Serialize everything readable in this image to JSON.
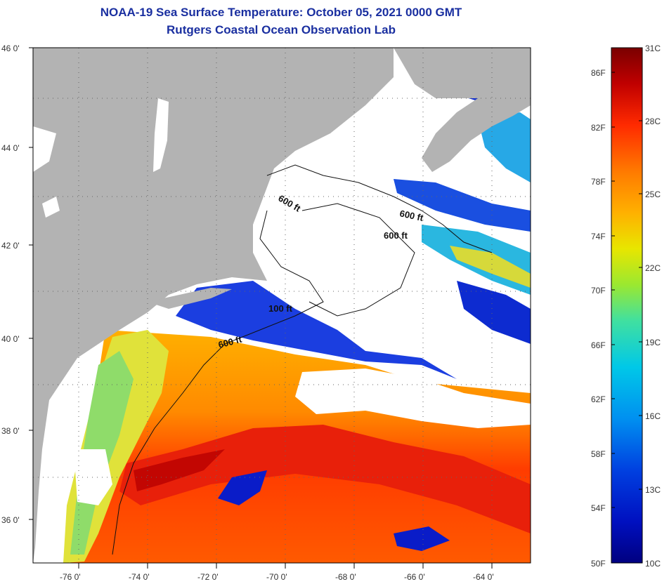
{
  "title": {
    "line1": "NOAA-19 Sea Surface Temperature:  October 05, 2021 0000 GMT",
    "line2": "Rutgers Coastal Ocean Observation Lab"
  },
  "map": {
    "lat_labels": [
      "46 0'",
      "44 0'",
      "42 0'",
      "40 0'",
      "38 0'",
      "36 0'"
    ],
    "lon_labels": [
      "-76 0'",
      "-74 0'",
      "-72 0'",
      "-70 0'",
      "-68 0'",
      "-66 0'",
      "-64 0'"
    ],
    "contour_labels": [
      "600 ft",
      "600 ft",
      "600 ft",
      "100 ft",
      "600 ft"
    ]
  },
  "colorbar": {
    "top_celsius": "31C",
    "bottom_celsius": "10C",
    "bottom_fahrenheit": "50F",
    "celsius_labels": [
      "28C",
      "25C",
      "22C",
      "19C",
      "16C",
      "13C"
    ],
    "fahrenheit_labels": [
      "86F",
      "82F",
      "78F",
      "74F",
      "70F",
      "66F",
      "62F",
      "58F",
      "54F"
    ],
    "colors": [
      "#7a0000",
      "#c00000",
      "#ff2a00",
      "#ff7a00",
      "#ffb000",
      "#e8e600",
      "#9be830",
      "#40e0a0",
      "#00c8e8",
      "#0090f0",
      "#0040e0",
      "#0010c0",
      "#000080"
    ]
  },
  "colors": {
    "land": "#b3b3b3",
    "cloud": "#ffffff",
    "title": "#1a2fa0"
  }
}
